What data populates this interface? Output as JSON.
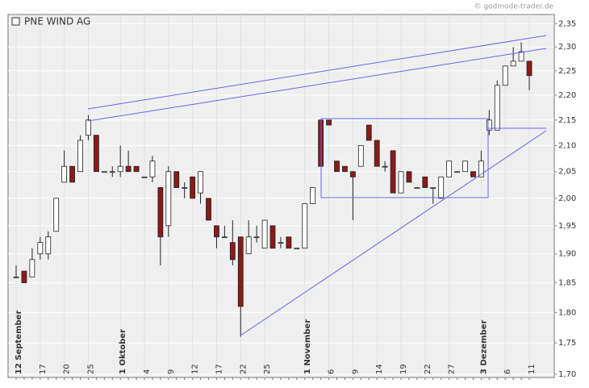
{
  "chart_data": {
    "type": "candlestick",
    "title": "PNE WIND AG",
    "source": "© godmode-trader.de",
    "categories": [
      "12 September",
      null,
      null,
      "17",
      null,
      null,
      "20",
      null,
      null,
      "25",
      null,
      null,
      null,
      "1 Oktober",
      null,
      null,
      "4",
      null,
      null,
      "9",
      null,
      null,
      "12",
      null,
      null,
      "17",
      null,
      null,
      "22",
      null,
      null,
      "25",
      null,
      null,
      null,
      null,
      "1 November",
      null,
      null,
      "6",
      null,
      null,
      "9",
      null,
      null,
      "14",
      null,
      null,
      "19",
      null,
      null,
      "22",
      null,
      null,
      "27",
      null,
      null,
      null,
      "3 Dezember",
      null,
      null,
      "6",
      null,
      null,
      "11"
    ],
    "open": [
      1.86,
      1.87,
      1.86,
      1.9,
      1.9,
      1.94,
      2.03,
      2.06,
      2.05,
      2.12,
      2.12,
      2.05,
      2.05,
      2.05,
      2.06,
      2.06,
      2.04,
      2.04,
      2.02,
      1.95,
      2.05,
      2.02,
      2.04,
      2.01,
      2.0,
      1.95,
      1.93,
      1.92,
      1.93,
      1.9,
      1.93,
      1.91,
      1.95,
      1.92,
      1.93,
      1.91,
      1.91,
      1.99,
      2.15,
      2.15,
      2.07,
      2.06,
      2.05,
      2.06,
      2.14,
      2.11,
      2.06,
      2.09,
      2.01,
      2.05,
      2.02,
      2.04,
      2.02,
      2.0,
      2.04,
      2.05,
      2.05,
      2.05,
      2.04,
      2.13,
      2.13,
      2.22,
      2.26,
      2.27,
      2.27
    ],
    "high": [
      1.88,
      1.87,
      1.91,
      1.93,
      1.94,
      2.0,
      2.09,
      2.06,
      2.12,
      2.16,
      2.12,
      2.05,
      2.06,
      2.1,
      2.09,
      2.06,
      2.04,
      2.08,
      2.02,
      2.06,
      2.05,
      2.03,
      2.04,
      2.05,
      2.0,
      1.95,
      1.95,
      1.96,
      1.93,
      1.96,
      1.95,
      1.96,
      1.95,
      1.93,
      1.93,
      1.91,
      1.99,
      2.02,
      2.15,
      2.15,
      2.07,
      2.06,
      2.05,
      2.1,
      2.14,
      2.11,
      2.07,
      2.09,
      2.05,
      2.05,
      2.02,
      2.04,
      2.02,
      2.04,
      2.07,
      2.05,
      2.07,
      2.05,
      2.09,
      2.17,
      2.23,
      2.26,
      2.3,
      2.31,
      2.27
    ],
    "low": [
      1.86,
      1.85,
      1.86,
      1.89,
      1.89,
      1.94,
      2.03,
      2.03,
      2.05,
      2.11,
      2.05,
      2.05,
      2.04,
      2.04,
      2.05,
      2.05,
      2.04,
      2.03,
      1.88,
      1.93,
      2.02,
      2.0,
      2.0,
      1.99,
      1.96,
      1.91,
      1.93,
      1.88,
      1.76,
      1.9,
      1.92,
      1.91,
      1.91,
      1.91,
      1.91,
      1.91,
      1.91,
      1.99,
      2.06,
      2.14,
      2.05,
      2.05,
      1.96,
      2.06,
      2.11,
      2.06,
      2.05,
      2.01,
      2.01,
      2.03,
      2.02,
      2.02,
      1.99,
      2.0,
      2.04,
      2.05,
      2.05,
      2.04,
      2.04,
      2.12,
      2.13,
      2.22,
      2.26,
      2.27,
      2.21
    ],
    "close": [
      1.86,
      1.85,
      1.89,
      1.92,
      1.93,
      2.0,
      2.06,
      2.03,
      2.11,
      2.15,
      2.05,
      2.05,
      2.05,
      2.06,
      2.05,
      2.05,
      2.04,
      2.07,
      1.93,
      2.05,
      2.02,
      2.02,
      2.0,
      2.05,
      1.96,
      1.93,
      1.93,
      1.89,
      1.81,
      1.93,
      1.93,
      1.96,
      1.91,
      1.92,
      1.91,
      1.91,
      1.99,
      2.02,
      2.06,
      2.14,
      2.05,
      2.05,
      2.04,
      2.1,
      2.11,
      2.06,
      2.06,
      2.01,
      2.05,
      2.03,
      2.02,
      2.02,
      2.02,
      2.04,
      2.07,
      2.05,
      2.07,
      2.04,
      2.07,
      2.15,
      2.22,
      2.26,
      2.27,
      2.29,
      2.24
    ],
    "up_color": "#ffffff",
    "down_color": "#8b1a1a",
    "log_scale": true,
    "ylim": [
      1.695,
      2.37
    ],
    "yticks": [
      {
        "value": 1.7,
        "label": "1,70"
      },
      {
        "value": 1.75,
        "label": "1,75"
      },
      {
        "value": 1.8,
        "label": "1,80"
      },
      {
        "value": 1.85,
        "label": "1,85"
      },
      {
        "value": 1.9,
        "label": "1,90"
      },
      {
        "value": 1.95,
        "label": "1,95"
      },
      {
        "value": 2.0,
        "label": "2,00"
      },
      {
        "value": 2.05,
        "label": "2,05"
      },
      {
        "value": 2.1,
        "label": "2,10"
      },
      {
        "value": 2.15,
        "label": "2,15"
      },
      {
        "value": 2.2,
        "label": "2,20"
      },
      {
        "value": 2.25,
        "label": "2,25"
      },
      {
        "value": 2.3,
        "label": "2,30"
      },
      {
        "value": 2.35,
        "label": "2,35"
      }
    ],
    "grid": true
  }
}
